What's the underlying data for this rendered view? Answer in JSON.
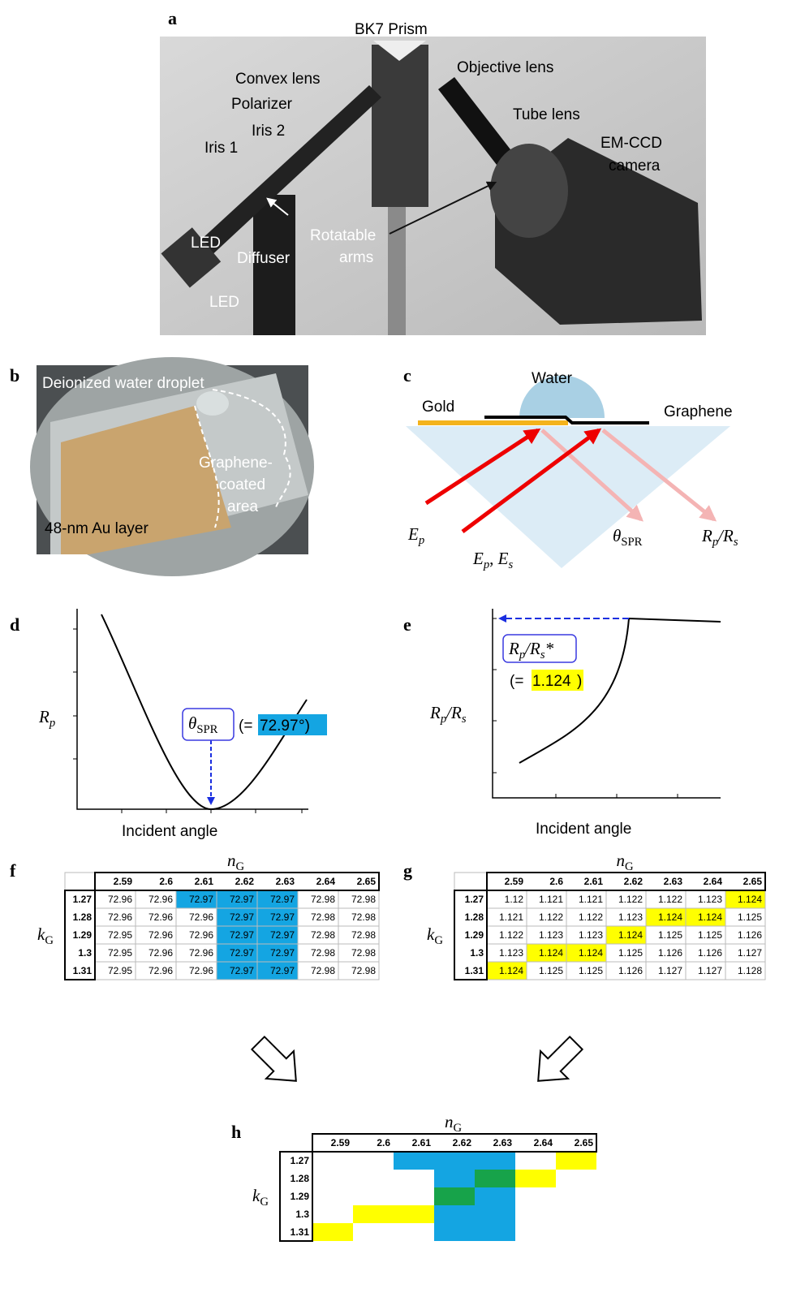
{
  "panels": {
    "a": {
      "label": "a",
      "texts": [
        "BK7 Prism",
        "Objective lens",
        "Convex lens",
        "Polarizer",
        "Iris 2",
        "Tube lens",
        "EM-CCD",
        "camera",
        "Iris 1",
        "LED",
        "Diffuser",
        "Rotatable",
        "arms",
        "LED"
      ]
    },
    "b": {
      "label": "b",
      "texts": [
        "Deionized water droplet",
        "Graphene-",
        "coated",
        "area",
        "48-nm Au layer"
      ]
    },
    "c": {
      "label": "c",
      "texts": [
        "Water",
        "Gold",
        "Graphene"
      ],
      "ep": [
        {
          "text": "E",
          "italic": true
        },
        {
          "text": "p",
          "italic": true,
          "sub": true
        }
      ],
      "epes": [
        {
          "text": "E",
          "italic": true
        },
        {
          "text": "p",
          "italic": true,
          "sub": true
        },
        {
          "text": ", "
        },
        {
          "text": "E",
          "italic": true
        },
        {
          "text": "s",
          "italic": true,
          "sub": true
        }
      ],
      "theta": [
        {
          "text": "θ",
          "italic": true
        },
        {
          "text": "SPR",
          "sub": true
        }
      ],
      "rprs": [
        {
          "text": "R",
          "italic": true
        },
        {
          "text": "p",
          "italic": true,
          "sub": true
        },
        {
          "text": "/",
          "italic": true
        },
        {
          "text": "R",
          "italic": true
        },
        {
          "text": "s",
          "italic": true,
          "sub": true
        }
      ]
    },
    "d": {
      "label": "d",
      "xlabel": "Incident angle",
      "ylabel": [
        {
          "text": "R",
          "italic": true
        },
        {
          "text": "p",
          "italic": true,
          "sub": true
        }
      ],
      "box": [
        {
          "text": "θ",
          "italic": true
        },
        {
          "text": "SPR",
          "sub": true
        }
      ],
      "value": {
        "prefix": "(=",
        "value": 72.97,
        "suffix": " °)"
      }
    },
    "e": {
      "label": "e",
      "xlabel": "Incident angle",
      "ylabel": [
        {
          "text": "R",
          "italic": true
        },
        {
          "text": "p",
          "italic": true,
          "sub": true
        },
        {
          "text": "/",
          "italic": true
        },
        {
          "text": "R",
          "italic": true
        },
        {
          "text": "s",
          "italic": true,
          "sub": true
        }
      ],
      "box": [
        {
          "text": "R",
          "italic": true
        },
        {
          "text": "p",
          "italic": true,
          "sub": true
        },
        {
          "text": "/",
          "italic": true
        },
        {
          "text": "R",
          "italic": true
        },
        {
          "text": "s",
          "italic": true,
          "sub": true
        },
        {
          "text": "*",
          "italic": true
        }
      ],
      "value": {
        "prefix": "(=",
        "value": 1.124,
        "suffix": ")"
      }
    },
    "f": {
      "label": "f",
      "col_label": [
        {
          "text": "n",
          "italic": true
        },
        {
          "text": "G",
          "sub": true
        }
      ],
      "row_label": [
        {
          "text": "k",
          "italic": true
        },
        {
          "text": "G",
          "sub": true
        }
      ],
      "columns": [
        2.59,
        2.6,
        2.61,
        2.62,
        2.63,
        2.64,
        2.65
      ],
      "rows": [
        1.27,
        1.28,
        1.29,
        1.3,
        1.31
      ],
      "cells": [
        [
          72.96,
          72.96,
          72.97,
          72.97,
          72.97,
          72.98,
          72.98
        ],
        [
          72.96,
          72.96,
          72.96,
          72.97,
          72.97,
          72.98,
          72.98
        ],
        [
          72.95,
          72.96,
          72.96,
          72.97,
          72.97,
          72.98,
          72.98
        ],
        [
          72.95,
          72.96,
          72.96,
          72.97,
          72.97,
          72.98,
          72.98
        ],
        [
          72.95,
          72.96,
          72.96,
          72.97,
          72.97,
          72.98,
          72.98
        ]
      ],
      "highlight_color": "#14a5e2"
    },
    "g": {
      "label": "g",
      "col_label": [
        {
          "text": "n",
          "italic": true
        },
        {
          "text": "G",
          "sub": true
        }
      ],
      "row_label": [
        {
          "text": "k",
          "italic": true
        },
        {
          "text": "G",
          "sub": true
        }
      ],
      "columns": [
        2.59,
        2.6,
        2.61,
        2.62,
        2.63,
        2.64,
        2.65
      ],
      "rows": [
        1.27,
        1.28,
        1.29,
        1.3,
        1.31
      ],
      "cells": [
        [
          1.12,
          1.121,
          1.121,
          1.122,
          1.122,
          1.123,
          1.124
        ],
        [
          1.121,
          1.122,
          1.122,
          1.123,
          1.124,
          1.124,
          1.125
        ],
        [
          1.122,
          1.123,
          1.123,
          1.124,
          1.125,
          1.125,
          1.126
        ],
        [
          1.123,
          1.124,
          1.124,
          1.125,
          1.126,
          1.126,
          1.127
        ],
        [
          1.124,
          1.125,
          1.125,
          1.126,
          1.127,
          1.127,
          1.128
        ]
      ],
      "highlight_color": "#ffff00"
    },
    "h": {
      "label": "h",
      "col_label": [
        {
          "text": "n",
          "italic": true
        },
        {
          "text": "G",
          "sub": true
        }
      ],
      "row_label": [
        {
          "text": "k",
          "italic": true
        },
        {
          "text": "G",
          "sub": true
        }
      ],
      "columns": [
        2.59,
        2.6,
        2.61,
        2.62,
        2.63,
        2.64,
        2.65
      ],
      "rows": [
        1.27,
        1.28,
        1.29,
        1.3,
        1.31
      ],
      "overlap_color": "#17a34a"
    }
  }
}
